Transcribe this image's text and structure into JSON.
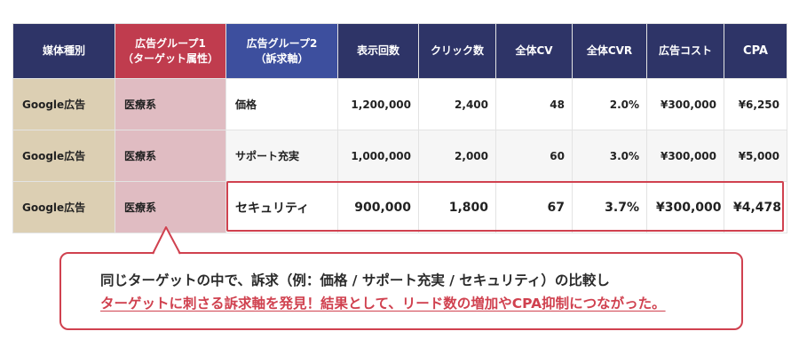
{
  "table": {
    "headers": [
      {
        "line1": "媒体種別",
        "line2": ""
      },
      {
        "line1": "広告グループ1",
        "line2": "（ターゲット属性）"
      },
      {
        "line1": "広告グループ2",
        "line2": "（訴求軸）"
      },
      {
        "line1": "表示回数",
        "line2": ""
      },
      {
        "line1": "クリック数",
        "line2": ""
      },
      {
        "line1": "全体CV",
        "line2": ""
      },
      {
        "line1": "全体CVR",
        "line2": ""
      },
      {
        "line1": "広告コスト",
        "line2": ""
      },
      {
        "line1": "CPA",
        "line2": ""
      }
    ],
    "rows": [
      {
        "media": "Google広告",
        "group1": "医療系",
        "group2": "価格",
        "impressions": "1,200,000",
        "clicks": "2,400",
        "cv": "48",
        "cvr": "2.0%",
        "cost": "¥300,000",
        "cpa": "¥6,250"
      },
      {
        "media": "Google広告",
        "group1": "医療系",
        "group2": "サポート充実",
        "impressions": "1,000,000",
        "clicks": "2,000",
        "cv": "60",
        "cvr": "3.0%",
        "cost": "¥300,000",
        "cpa": "¥5,000"
      },
      {
        "media": "Google広告",
        "group1": "医療系",
        "group2": "セキュリティ",
        "impressions": "900,000",
        "clicks": "1,800",
        "cv": "67",
        "cvr": "3.7%",
        "cost": "¥300,000",
        "cpa": "¥4,478"
      }
    ]
  },
  "callout": {
    "line1": "同じターゲットの中で、訴求（例：価格 / サポート充実 / セキュリティ）の比較し",
    "line2": "ターゲットに刺さる訴求軸を発見！結果として、リード数の増加やCPA抑制につながった。"
  },
  "colors": {
    "header_navy": "#2e3467",
    "header_group1": "#c03c4e",
    "header_group2": "#3d4f9e",
    "media_cell": "#dccfb3",
    "group1_cell": "#e0bcc2",
    "accent_red": "#d0414f"
  }
}
